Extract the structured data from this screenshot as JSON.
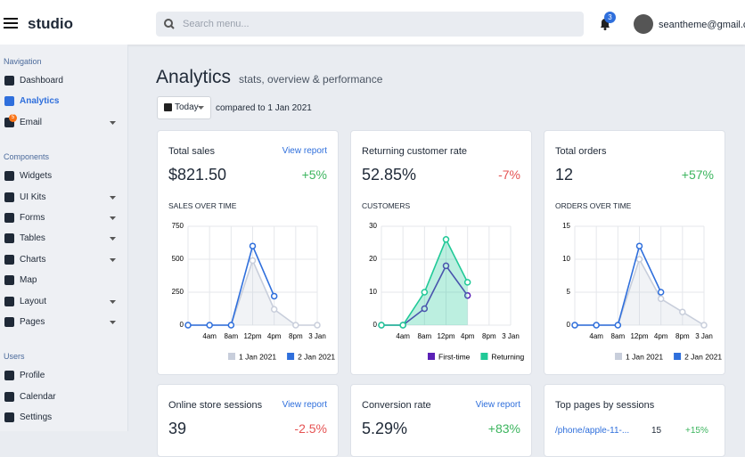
{
  "header": {
    "brand": "studio",
    "search_placeholder": "Search menu...",
    "notifications": "3",
    "user": "seantheme@gmail.com"
  },
  "sidebar": [
    {
      "heading": "Navigation",
      "items": [
        {
          "label": "Dashboard"
        },
        {
          "label": "Analytics",
          "active": true
        },
        {
          "label": "Email",
          "badge": "5",
          "caret": true
        }
      ]
    },
    {
      "heading": "Components",
      "items": [
        {
          "label": "Widgets"
        },
        {
          "label": "UI Kits",
          "caret": true
        },
        {
          "label": "Forms",
          "caret": true
        },
        {
          "label": "Tables",
          "caret": true
        },
        {
          "label": "Charts",
          "caret": true
        },
        {
          "label": "Map"
        },
        {
          "label": "Layout",
          "caret": true
        },
        {
          "label": "Pages",
          "caret": true
        }
      ]
    },
    {
      "heading": "Users",
      "items": [
        {
          "label": "Profile"
        },
        {
          "label": "Calendar"
        },
        {
          "label": "Settings"
        }
      ]
    }
  ],
  "page": {
    "title": "Analytics",
    "subtitle": "stats, overview & performance",
    "range_button": "Today",
    "compare": "compared to 1 Jan 2021"
  },
  "cards": [
    {
      "title": "Total sales",
      "link": "View report",
      "value": "$821.50",
      "change": "+5%",
      "change_color": "#3cb55e",
      "chart": {
        "type": "line",
        "label": "SALES OVER TIME",
        "categories": [
          null,
          "4am",
          "8am",
          "12pm",
          "4pm",
          "8pm",
          "3 Jan"
        ],
        "series": [
          {
            "name": "1 Jan 2021",
            "color": "#c8cedb",
            "fill": true,
            "values": [
              0,
              0,
              0,
              490,
              120,
              0,
              0
            ]
          },
          {
            "name": "2 Jan 2021",
            "color": "#2f6fdc",
            "fill": false,
            "values": [
              0,
              0,
              0,
              600,
              220,
              null,
              null
            ]
          }
        ],
        "ylim": [
          0,
          750
        ],
        "yticks": [
          0,
          250,
          500,
          750
        ],
        "grid": true
      }
    },
    {
      "title": "Returning customer rate",
      "link": null,
      "value": "52.85%",
      "change": "-7%",
      "change_color": "#e55353",
      "chart": {
        "type": "area",
        "label": "CUSTOMERS",
        "categories": [
          null,
          "4am",
          "8am",
          "12pm",
          "4pm",
          "8pm",
          "3 Jan"
        ],
        "series": [
          {
            "name": "First-time",
            "color": "#5b21b6",
            "fill": false,
            "values": [
              0,
              0,
              5,
              18,
              9,
              null,
              null
            ]
          },
          {
            "name": "Returning",
            "color": "#20c997",
            "fill": true,
            "values": [
              0,
              0,
              10,
              26,
              13,
              null,
              null
            ]
          }
        ],
        "ylim": [
          0,
          30
        ],
        "yticks": [
          0,
          10,
          20,
          30
        ],
        "grid": true
      }
    },
    {
      "title": "Total orders",
      "link": null,
      "value": "12",
      "change": "+57%",
      "change_color": "#3cb55e",
      "chart": {
        "type": "line",
        "label": "ORDERS OVER TIME",
        "categories": [
          null,
          "4am",
          "8am",
          "12pm",
          "4pm",
          "8pm",
          "3 Jan"
        ],
        "series": [
          {
            "name": "1 Jan 2021",
            "color": "#c8cedb",
            "fill": true,
            "values": [
              0,
              0,
              0,
              10,
              4,
              2,
              0
            ]
          },
          {
            "name": "2 Jan 2021",
            "color": "#2f6fdc",
            "fill": false,
            "values": [
              0,
              0,
              0,
              12,
              5,
              null,
              null
            ]
          }
        ],
        "ylim": [
          0,
          15
        ],
        "yticks": [
          0,
          5,
          10,
          15
        ],
        "grid": true
      }
    }
  ],
  "lower_cards": [
    {
      "title": "Online store sessions",
      "link": "View report",
      "value": "39",
      "change": "-2.5%",
      "change_color": "#e55353"
    },
    {
      "title": "Conversion rate",
      "link": "View report",
      "value": "5.29%",
      "change": "+83%",
      "change_color": "#3cb55e"
    },
    {
      "title": "Top pages by sessions",
      "row": {
        "page": "/phone/apple-11-...",
        "sessions": "15",
        "change": "+15%"
      }
    }
  ]
}
